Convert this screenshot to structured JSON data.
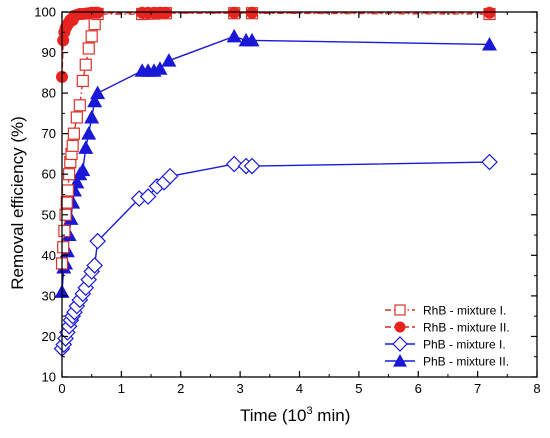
{
  "chart_data": {
    "type": "line",
    "title": "",
    "xlabel": "Time (10",
    "xlabel_sup": "3",
    "xlabel_tail": " min)",
    "ylabel": "Removal efficiency (%)",
    "xlim": [
      0,
      8
    ],
    "ylim": [
      10,
      100
    ],
    "xticks": [
      0,
      1,
      2,
      3,
      4,
      5,
      6,
      7,
      8
    ],
    "yticks": [
      10,
      20,
      30,
      40,
      50,
      60,
      70,
      80,
      90,
      100
    ],
    "legend_position": "bottom-right",
    "grid": false,
    "series": [
      {
        "name": "RhB - mixture I.",
        "color": "#d9342b",
        "marker": "open-square",
        "line": "dash-dot",
        "x": [
          0.0,
          0.02,
          0.04,
          0.06,
          0.08,
          0.1,
          0.12,
          0.14,
          0.16,
          0.18,
          0.2,
          0.25,
          0.3,
          0.35,
          0.4,
          0.45,
          0.5,
          0.55,
          0.6,
          1.35,
          1.45,
          1.55,
          1.65,
          1.75,
          2.9,
          3.2,
          7.2
        ],
        "values": [
          38,
          42,
          46,
          50,
          53,
          56,
          60,
          63,
          65,
          67,
          70,
          74,
          77,
          83,
          87,
          91,
          94,
          97,
          99.5,
          99.5,
          99.6,
          99.6,
          99.7,
          99.7,
          99.7,
          99.7,
          99.5
        ]
      },
      {
        "name": "RhB - mixture II.",
        "color": "#e8231f",
        "marker": "filled-circle",
        "line": "dash",
        "x": [
          0.0,
          0.02,
          0.04,
          0.06,
          0.08,
          0.1,
          0.12,
          0.14,
          0.16,
          0.18,
          0.2,
          0.25,
          0.3,
          0.35,
          0.4,
          0.45,
          0.5,
          0.55,
          0.6,
          1.35,
          1.45,
          1.55,
          1.65,
          1.75,
          2.9,
          3.2,
          7.2
        ],
        "values": [
          84,
          93,
          95,
          96,
          96.5,
          97,
          97.5,
          98,
          98,
          98,
          99,
          99.3,
          99.5,
          99.5,
          99.6,
          99.7,
          99.8,
          99.8,
          99.8,
          99.8,
          99.8,
          99.8,
          99.8,
          99.8,
          99.8,
          99.8,
          99.8
        ]
      },
      {
        "name": "PhB - mixture I.",
        "color": "#1a1adb",
        "marker": "open-diamond",
        "line": "solid",
        "x": [
          0.0,
          0.03,
          0.06,
          0.09,
          0.12,
          0.15,
          0.18,
          0.21,
          0.25,
          0.3,
          0.35,
          0.4,
          0.45,
          0.5,
          0.55,
          0.6,
          1.3,
          1.45,
          1.6,
          1.72,
          1.82,
          2.9,
          3.1,
          3.2,
          7.2
        ],
        "values": [
          17,
          18,
          19.5,
          21,
          22.5,
          24,
          25,
          26,
          27.5,
          29,
          30.5,
          32,
          34,
          36,
          37.5,
          43.5,
          54,
          54.5,
          57,
          58,
          59.5,
          62.5,
          62,
          62,
          63
        ]
      },
      {
        "name": "PhB - mixture II.",
        "color": "#1818d6",
        "marker": "filled-triangle",
        "line": "solid",
        "x": [
          0.0,
          0.03,
          0.06,
          0.09,
          0.12,
          0.15,
          0.18,
          0.21,
          0.25,
          0.3,
          0.35,
          0.4,
          0.45,
          0.5,
          0.55,
          0.6,
          1.35,
          1.45,
          1.55,
          1.65,
          1.8,
          2.9,
          3.1,
          3.2,
          7.2
        ],
        "values": [
          31,
          37,
          38,
          41,
          45,
          49,
          53,
          56,
          58,
          60,
          61,
          66.5,
          70,
          74,
          78,
          80,
          85.5,
          85.5,
          85.5,
          86,
          88,
          94,
          93,
          93,
          92
        ]
      }
    ]
  }
}
